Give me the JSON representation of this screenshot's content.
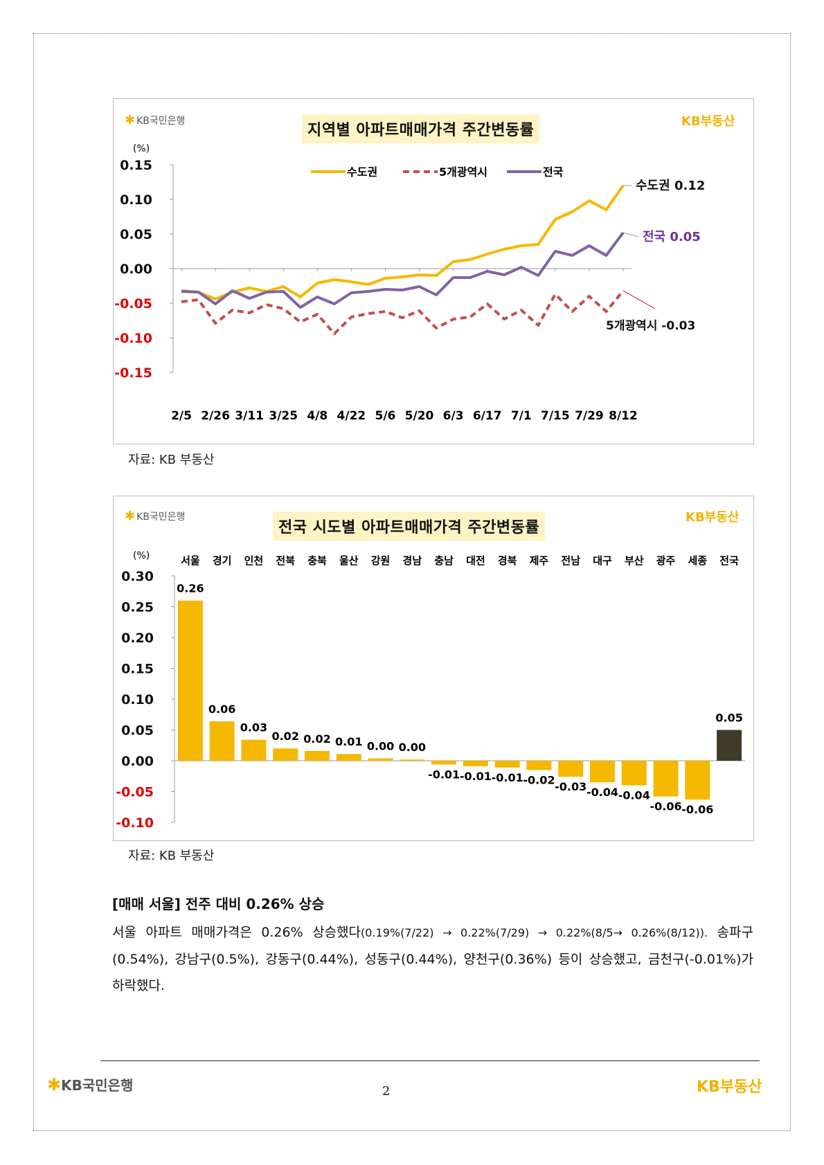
{
  "chart1": {
    "logo_left": "KB국민은행",
    "logo_right": "KB부동산",
    "title": "지역별 아파트매매가격 주간변동률",
    "unit": "(%)",
    "legend": [
      "수도권",
      "5개광역시",
      "전국"
    ],
    "source": "자료: KB 부동산",
    "chart_data": {
      "type": "line",
      "title": "지역별 아파트매매가격 주간변동률",
      "ylabel": "(%)",
      "ylim": [
        -0.15,
        0.15
      ],
      "yticks": [
        "0.15",
        "0.10",
        "0.05",
        "0.00",
        "-0.05",
        "-0.10",
        "-0.15"
      ],
      "x_tick_labels": [
        "2/5",
        "2/26",
        "3/11",
        "3/25",
        "4/8",
        "4/22",
        "5/6",
        "5/20",
        "6/3",
        "6/17",
        "7/1",
        "7/15",
        "7/29",
        "8/12"
      ],
      "series": [
        {
          "name": "수도권",
          "color": "#f5b800",
          "dash": "solid",
          "values": [
            -0.032,
            -0.034,
            -0.044,
            -0.034,
            -0.028,
            -0.033,
            -0.026,
            -0.041,
            -0.021,
            -0.016,
            -0.019,
            -0.023,
            -0.014,
            -0.012,
            -0.009,
            -0.01,
            0.01,
            0.013,
            0.021,
            0.028,
            0.033,
            0.035,
            0.071,
            0.082,
            0.098,
            0.085,
            0.12
          ]
        },
        {
          "name": "5개광역시",
          "color": "#c0504d",
          "dash": "dashed",
          "values": [
            -0.048,
            -0.045,
            -0.079,
            -0.06,
            -0.064,
            -0.052,
            -0.058,
            -0.077,
            -0.066,
            -0.094,
            -0.07,
            -0.065,
            -0.062,
            -0.071,
            -0.061,
            -0.086,
            -0.073,
            -0.07,
            -0.051,
            -0.073,
            -0.06,
            -0.082,
            -0.037,
            -0.062,
            -0.04,
            -0.062,
            -0.032
          ]
        },
        {
          "name": "전국",
          "color": "#8064a2",
          "dash": "solid",
          "values": [
            -0.033,
            -0.034,
            -0.051,
            -0.032,
            -0.043,
            -0.034,
            -0.033,
            -0.056,
            -0.041,
            -0.051,
            -0.035,
            -0.033,
            -0.03,
            -0.031,
            -0.026,
            -0.038,
            -0.013,
            -0.013,
            -0.004,
            -0.009,
            0.002,
            -0.01,
            0.025,
            0.019,
            0.033,
            0.019,
            0.052
          ]
        }
      ],
      "annotations": [
        "수도권 0.12",
        "전국 0.05",
        "5개광역시 -0.03"
      ]
    }
  },
  "chart2": {
    "logo_left": "KB국민은행",
    "logo_right": "KB부동산",
    "title": "전국 시도별 아파트매매가격 주간변동률",
    "unit": "(%)",
    "source": "자료: KB 부동산",
    "chart_data": {
      "type": "bar",
      "title": "전국 시도별 아파트매매가격 주간변동률",
      "ylabel": "(%)",
      "ylim": [
        -0.1,
        0.3
      ],
      "yticks": [
        "0.30",
        "0.25",
        "0.20",
        "0.15",
        "0.10",
        "0.05",
        "0.00",
        "-0.05",
        "-0.10"
      ],
      "categories": [
        "서울",
        "경기",
        "인천",
        "전북",
        "충북",
        "울산",
        "강원",
        "경남",
        "충남",
        "대전",
        "경북",
        "제주",
        "전남",
        "대구",
        "부산",
        "광주",
        "세종",
        "전국"
      ],
      "values": [
        0.26,
        0.064,
        0.034,
        0.02,
        0.016,
        0.011,
        0.004,
        0.002,
        -0.006,
        -0.009,
        -0.011,
        -0.015,
        -0.026,
        -0.035,
        -0.04,
        -0.058,
        -0.063,
        0.05
      ],
      "data_labels": [
        "0.26",
        "0.06",
        "0.03",
        "0.02",
        "0.02",
        "0.01",
        "0.00",
        "0.00",
        "-0.01",
        "-0.01",
        "-0.01",
        "-0.02",
        "-0.03",
        "-0.04",
        "-0.04",
        "-0.06",
        "-0.06",
        "0.05"
      ],
      "colors": {
        "region": "#f5b800",
        "national": "#3f3a2a"
      }
    }
  },
  "body": {
    "headline": "[매매 서울] 전주 대비 0.26% 상승",
    "para_part1": "서울 아파트 매매가격은 0.26% 상승했다",
    "para_part2": "(0.19%(7/22) → 0.22%(7/29) → 0.22%(8/5→ 0.26%(8/12)).",
    "para_part3": " 송파구(0.54%), 강남구(0.5%), 강동구(0.44%), 성동구(0.44%), 양천구(0.36%) 등이 상승했고, 금천구(-0.01%)가 하락했다."
  },
  "footer": {
    "logo_left": "KB국민은행",
    "logo_right": "KB부동산",
    "page_number": "2"
  }
}
